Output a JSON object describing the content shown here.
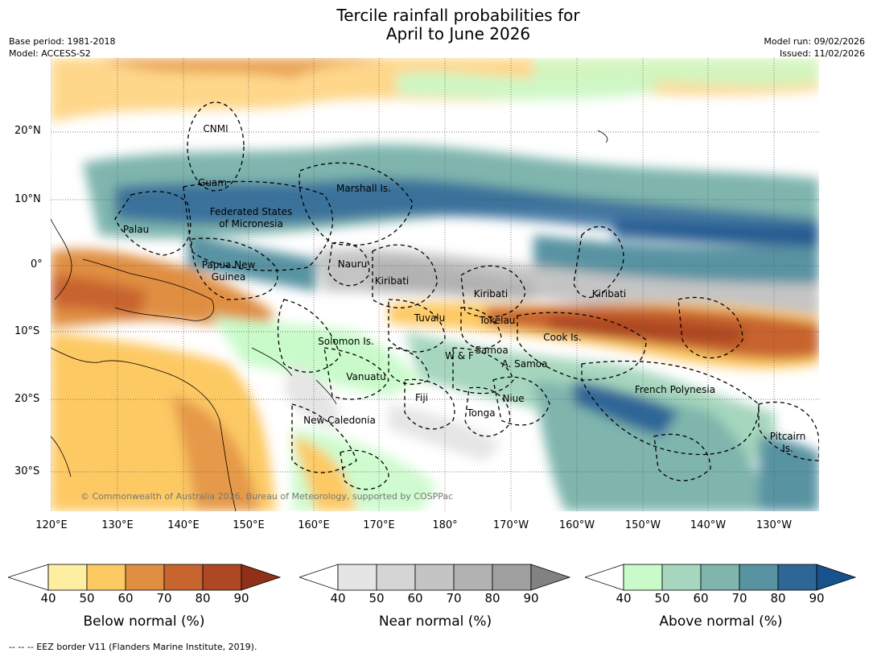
{
  "title_line1": "Tercile rainfall probabilities for",
  "title_line2": "April to June 2026",
  "base_period": "Base period: 1981-2018",
  "model": "Model: ACCESS-S2",
  "model_run": "Model run: 09/02/2026",
  "issued": "Issued: 11/02/2026",
  "lat_labels": [
    "20°N",
    "10°N",
    "0°",
    "10°S",
    "20°S",
    "30°S"
  ],
  "lon_labels": [
    "120°E",
    "130°E",
    "140°E",
    "150°E",
    "160°E",
    "170°E",
    "180°",
    "170°W",
    "160°W",
    "150°W",
    "140°W",
    "130°W"
  ],
  "regions": {
    "cnmi": "CNMI",
    "guam": "Guam",
    "marshall": "Marshall Is.",
    "fsm_1": "Federated States",
    "fsm_2": "of Micronesia",
    "palau": "Palau",
    "png_1": "Papua New",
    "png_2": "Guinea",
    "nauru": "Nauru",
    "kiribati_w": "Kiribati",
    "kiribati_c": "Kiribati",
    "kiribati_e": "Kiribati",
    "tuvalu": "Tuvalu",
    "tokelau": "Tokelau",
    "cook": "Cook Is.",
    "solomon": "Solomon Is.",
    "wf": "W & F",
    "samoa": "Samoa",
    "asamoa": "A. Samoa",
    "vanuatu": "Vanuatu",
    "fiji": "Fiji",
    "niue": "Niue",
    "tonga": "Tonga",
    "newcal": "New Caledonia",
    "frpoly": "French Polynesia",
    "pitcairn_1": "Pitcairn",
    "pitcairn_2": "Is."
  },
  "copyright": "© Commonwealth of Australia 2026, Bureau of Meteorology, supported by COSPPac",
  "legends": {
    "below": {
      "title": "Below normal (%)",
      "ticks": [
        "40",
        "50",
        "60",
        "70",
        "80",
        "90"
      ],
      "colors": [
        "#ffffff",
        "#fdeea2",
        "#fdc963",
        "#e08f42",
        "#c8642e",
        "#ae4724",
        "#8f3018"
      ]
    },
    "near": {
      "title": "Near normal (%)",
      "ticks": [
        "40",
        "50",
        "60",
        "70",
        "80",
        "90"
      ],
      "colors": [
        "#ffffff",
        "#e5e5e5",
        "#d5d5d5",
        "#c4c4c4",
        "#b2b2b2",
        "#9f9f9f",
        "#828282"
      ]
    },
    "above": {
      "title": "Above normal (%)",
      "ticks": [
        "40",
        "50",
        "60",
        "70",
        "80",
        "90"
      ],
      "colors": [
        "#ffffff",
        "#c9fbca",
        "#a6d6bd",
        "#7fb5ad",
        "#5893a2",
        "#2f6698",
        "#17528c"
      ]
    }
  },
  "eez_note": "--  --  -- EEZ border V11 (Flanders Marine Institute, 2019)."
}
